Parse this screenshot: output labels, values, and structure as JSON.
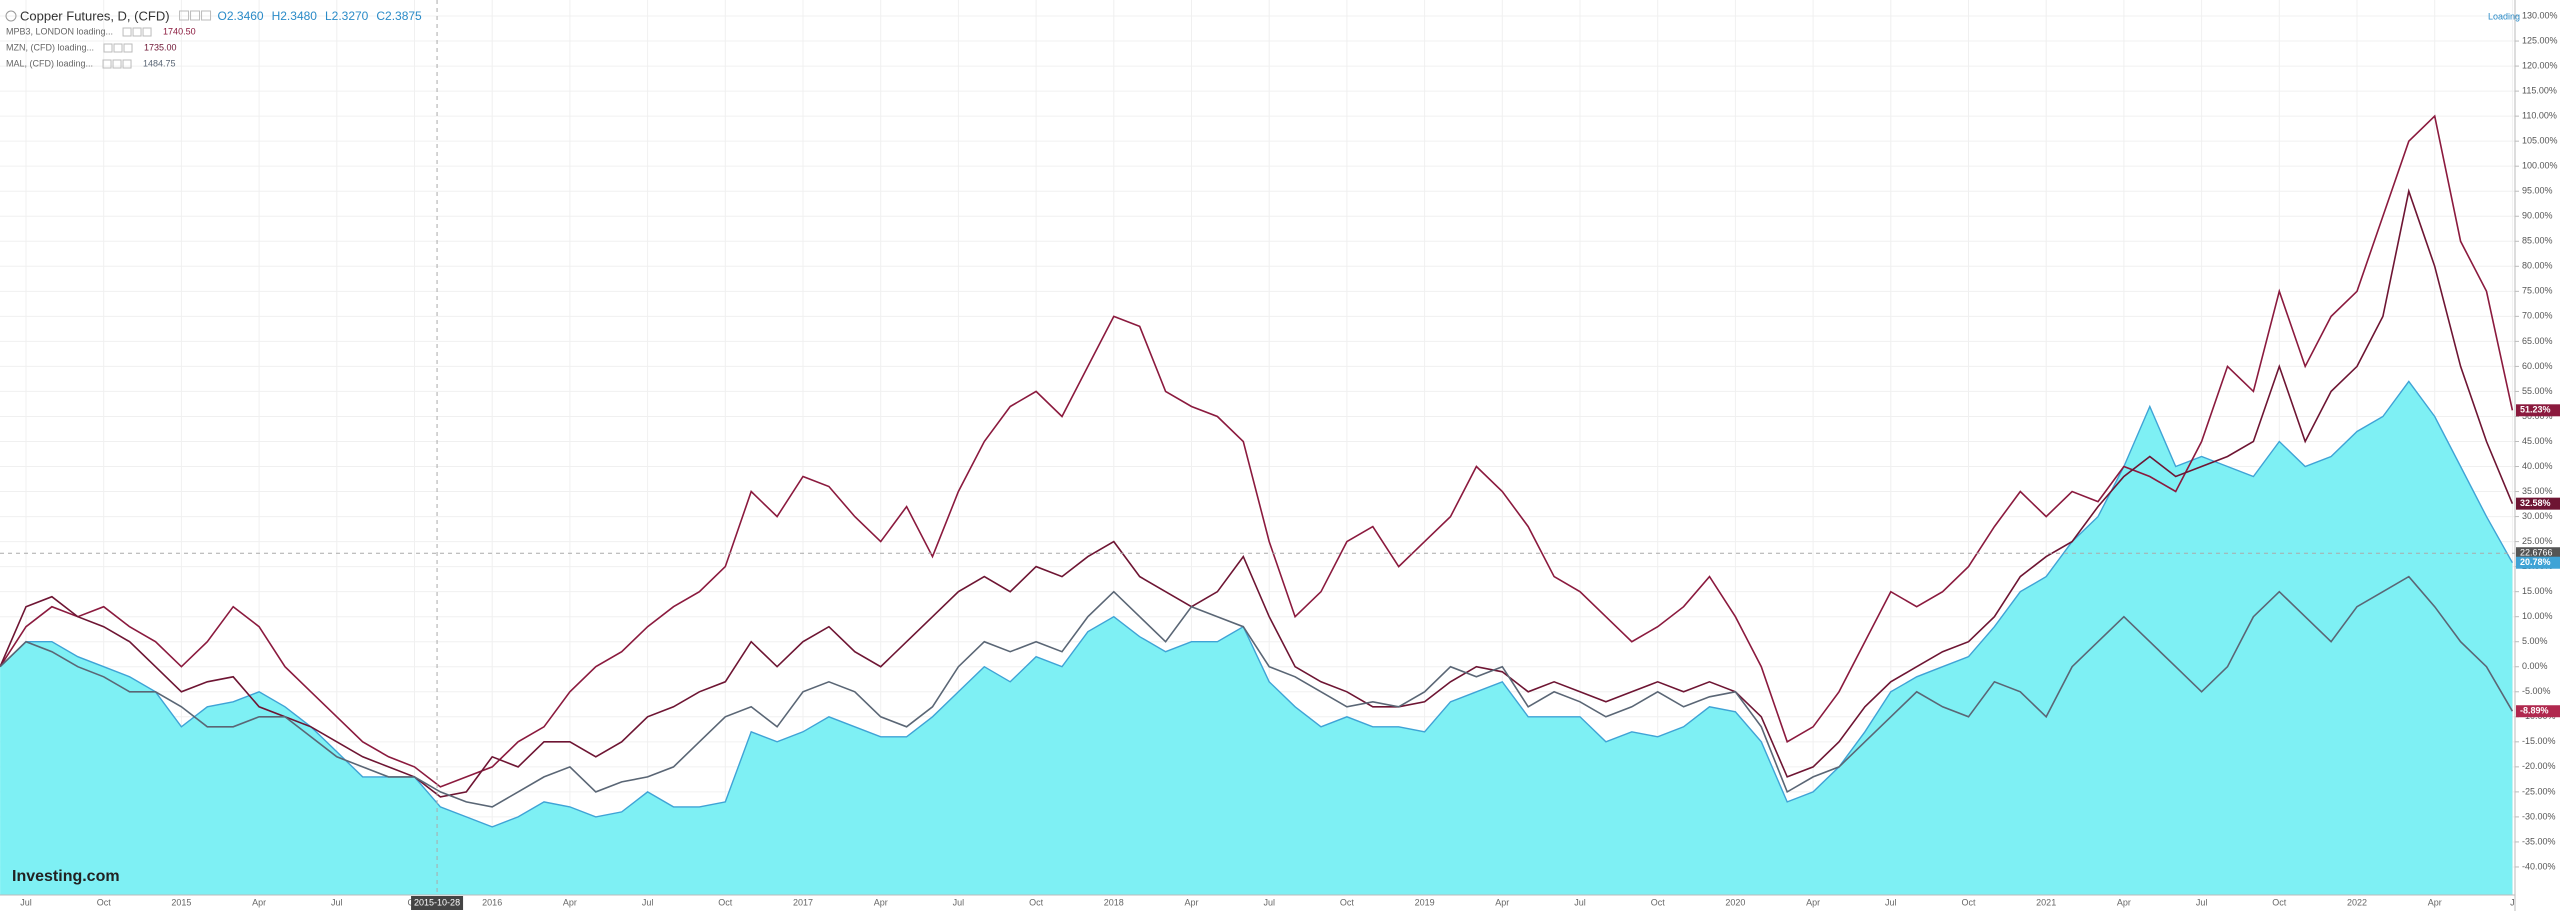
{
  "chart_data": {
    "type": "line",
    "categories": [
      null,
      "Jul",
      null,
      null,
      "Oct",
      null,
      null,
      "2015",
      null,
      null,
      "Apr",
      null,
      null,
      "Jul",
      null,
      null,
      "Oct",
      null,
      null,
      "2016",
      null,
      null,
      "Apr",
      null,
      null,
      "Jul",
      null,
      null,
      "Oct",
      null,
      null,
      "2017",
      null,
      null,
      "Apr",
      null,
      null,
      "Jul",
      null,
      null,
      "Oct",
      null,
      null,
      "2018",
      null,
      null,
      "Apr",
      null,
      null,
      "Jul",
      null,
      null,
      "Oct",
      null,
      null,
      "2019",
      null,
      null,
      "Apr",
      null,
      null,
      "Jul",
      null,
      null,
      "Oct",
      null,
      null,
      "2020",
      null,
      null,
      "Apr",
      null,
      null,
      "Jul",
      null,
      null,
      "Oct",
      null,
      null,
      "2021",
      null,
      null,
      "Apr",
      null,
      null,
      "Jul",
      null,
      null,
      "Oct",
      null,
      null,
      "2022",
      null,
      null,
      "Apr",
      null,
      null,
      "J"
    ],
    "series": [
      {
        "name": "Copper Futures, D, (CFD)",
        "color": "#3fa3d6",
        "fill": "#7ef0f4",
        "area": true,
        "ohlc": [
          "O2.3460",
          "H2.3480",
          "L2.3270",
          "C2.3875"
        ],
        "last_label": "20.78%",
        "values": [
          0,
          5,
          5,
          2,
          0,
          -2,
          -5,
          -12,
          -8,
          -7,
          -5,
          -8,
          -12,
          -17,
          -22,
          -22,
          -22,
          -28,
          -30,
          -32,
          -30,
          -27,
          -28,
          -30,
          -29,
          -25,
          -28,
          -28,
          -27,
          -13,
          -15,
          -13,
          -10,
          -12,
          -14,
          -14,
          -10,
          -5,
          0,
          -3,
          2,
          0,
          7,
          10,
          6,
          3,
          5,
          5,
          8,
          -3,
          -8,
          -12,
          -10,
          -12,
          -12,
          -13,
          -7,
          -5,
          -3,
          -10,
          -10,
          -10,
          -15,
          -13,
          -14,
          -12,
          -8,
          -9,
          -15,
          -27,
          -25,
          -20,
          -13,
          -5,
          -2,
          0,
          2,
          8,
          15,
          18,
          25,
          30,
          40,
          52,
          40,
          42,
          40,
          38,
          45,
          40,
          42,
          47,
          50,
          57,
          50,
          40,
          30,
          20.78
        ]
      },
      {
        "name": "MPB3, LONDON loading...",
        "legend_value": "1740.50",
        "color": "#8b1a3e",
        "last_label": "51.23%",
        "values": [
          0,
          8,
          12,
          10,
          12,
          8,
          5,
          0,
          5,
          12,
          8,
          0,
          -5,
          -10,
          -15,
          -18,
          -20,
          -24,
          -22,
          -20,
          -15,
          -12,
          -5,
          0,
          3,
          8,
          12,
          15,
          20,
          35,
          30,
          38,
          36,
          30,
          25,
          32,
          22,
          35,
          45,
          52,
          55,
          50,
          60,
          70,
          68,
          55,
          52,
          50,
          45,
          25,
          10,
          15,
          25,
          28,
          20,
          25,
          30,
          40,
          35,
          28,
          18,
          15,
          10,
          5,
          8,
          12,
          18,
          10,
          0,
          -15,
          -12,
          -5,
          5,
          15,
          12,
          15,
          20,
          28,
          35,
          30,
          35,
          33,
          40,
          38,
          35,
          45,
          60,
          55,
          75,
          60,
          70,
          75,
          90,
          105,
          110,
          85,
          75,
          51.23
        ]
      },
      {
        "name": "MZN, (CFD) loading...",
        "legend_value": "1735.00",
        "color": "#6e1533",
        "last_label": "32.58%",
        "values": [
          0,
          12,
          14,
          10,
          8,
          5,
          0,
          -5,
          -3,
          -2,
          -8,
          -10,
          -12,
          -15,
          -18,
          -20,
          -22,
          -26,
          -25,
          -18,
          -20,
          -15,
          -15,
          -18,
          -15,
          -10,
          -8,
          -5,
          -3,
          5,
          0,
          5,
          8,
          3,
          0,
          5,
          10,
          15,
          18,
          15,
          20,
          18,
          22,
          25,
          18,
          15,
          12,
          15,
          22,
          10,
          0,
          -3,
          -5,
          -8,
          -8,
          -7,
          -3,
          0,
          -1,
          -5,
          -3,
          -5,
          -7,
          -5,
          -3,
          -5,
          -3,
          -5,
          -10,
          -22,
          -20,
          -15,
          -8,
          -3,
          0,
          3,
          5,
          10,
          18,
          22,
          25,
          32,
          38,
          42,
          38,
          40,
          42,
          45,
          60,
          45,
          55,
          60,
          70,
          95,
          80,
          60,
          45,
          32.58
        ]
      },
      {
        "name": "MAL, (CFD) loading...",
        "legend_value": "1484.75",
        "color": "#5a6675",
        "last_label": "-8.89%",
        "label_color": "#b0284e",
        "values": [
          0,
          5,
          3,
          0,
          -2,
          -5,
          -5,
          -8,
          -12,
          -12,
          -10,
          -10,
          -14,
          -18,
          -20,
          -22,
          -22,
          -25,
          -27,
          -28,
          -25,
          -22,
          -20,
          -25,
          -23,
          -22,
          -20,
          -15,
          -10,
          -8,
          -12,
          -5,
          -3,
          -5,
          -10,
          -12,
          -8,
          0,
          5,
          3,
          5,
          3,
          10,
          15,
          10,
          5,
          12,
          10,
          8,
          0,
          -2,
          -5,
          -8,
          -7,
          -8,
          -5,
          0,
          -2,
          0,
          -8,
          -5,
          -7,
          -10,
          -8,
          -5,
          -8,
          -6,
          -5,
          -12,
          -25,
          -22,
          -20,
          -15,
          -10,
          -5,
          -8,
          -10,
          -3,
          -5,
          -10,
          0,
          5,
          10,
          5,
          0,
          -5,
          0,
          10,
          15,
          10,
          5,
          12,
          15,
          18,
          12,
          5,
          0,
          -8.89
        ]
      }
    ],
    "ylim": [
      -45.6,
      133.2
    ],
    "yticks": [
      {
        "value": -40,
        "label": "-40.00%"
      },
      {
        "value": -35,
        "label": "-35.00%"
      },
      {
        "value": -30,
        "label": "-30.00%"
      },
      {
        "value": -25,
        "label": "-25.00%"
      },
      {
        "value": -20,
        "label": "-20.00%"
      },
      {
        "value": -15,
        "label": "-15.00%"
      },
      {
        "value": -10,
        "label": "-10.00%"
      },
      {
        "value": -5,
        "label": "-5.00%"
      },
      {
        "value": 0,
        "label": "0.00%"
      },
      {
        "value": 5,
        "label": "5.00%"
      },
      {
        "value": 10,
        "label": "10.00%"
      },
      {
        "value": 15,
        "label": "15.00%"
      },
      {
        "value": 20,
        "label": "20.00%"
      },
      {
        "value": 25,
        "label": "25.00%"
      },
      {
        "value": 30,
        "label": "30.00%"
      },
      {
        "value": 35,
        "label": "35.00%"
      },
      {
        "value": 40,
        "label": "40.00%"
      },
      {
        "value": 45,
        "label": "45.00%"
      },
      {
        "value": 50,
        "label": "50.00%"
      },
      {
        "value": 55,
        "label": "55.00%"
      },
      {
        "value": 60,
        "label": "60.00%"
      },
      {
        "value": 65,
        "label": "65.00%"
      },
      {
        "value": 70,
        "label": "70.00%"
      },
      {
        "value": 75,
        "label": "75.00%"
      },
      {
        "value": 80,
        "label": "80.00%"
      },
      {
        "value": 85,
        "label": "85.00%"
      },
      {
        "value": 90,
        "label": "90.00%"
      },
      {
        "value": 95,
        "label": "95.00%"
      },
      {
        "value": 100,
        "label": "100.00%"
      },
      {
        "value": 105,
        "label": "105.00%"
      },
      {
        "value": 110,
        "label": "110.00%"
      },
      {
        "value": 115,
        "label": "115.00%"
      },
      {
        "value": 120,
        "label": "120.00%"
      },
      {
        "value": 125,
        "label": "125.00%"
      },
      {
        "value": 130,
        "label": "130.00%"
      }
    ],
    "grid": true,
    "crosshair": {
      "x_label": "2015-10-28",
      "y": 22.6766
    },
    "status": "Loading",
    "logo": "Investing.com"
  }
}
